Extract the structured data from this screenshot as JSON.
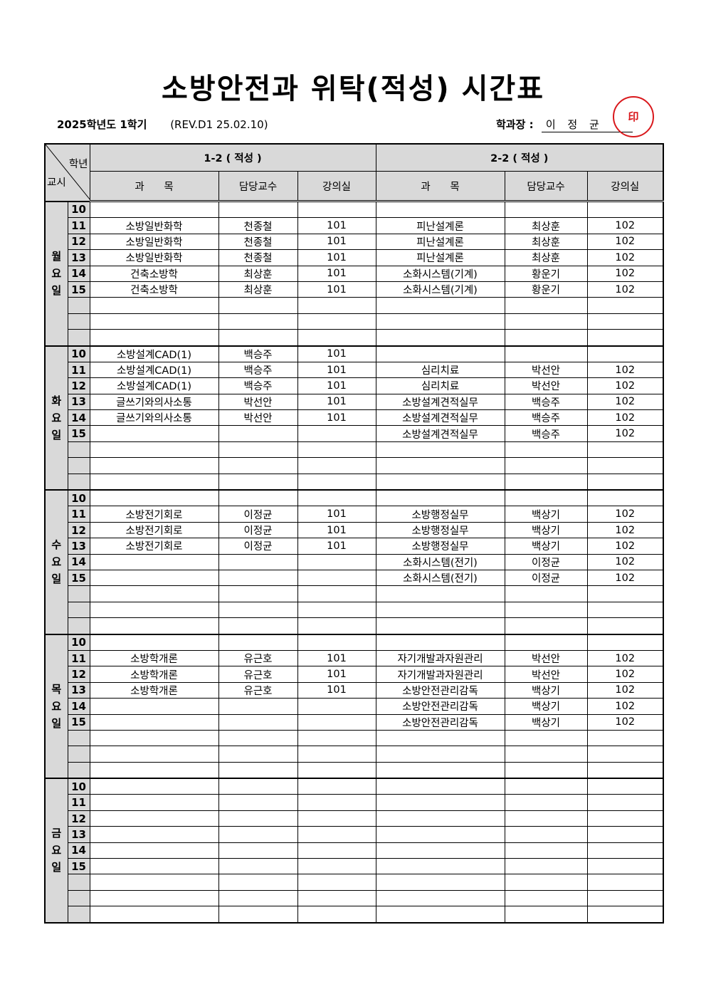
{
  "title": "소방안전과 위탁(적성) 시간표",
  "meta": {
    "term": "2025학년도  1학기",
    "revision": "(REV.D1  25.02.10)",
    "head_label": "학과장 :",
    "head_name": "이 정 균",
    "seal_mark": "(인)",
    "seal_text": "학과장"
  },
  "table": {
    "corner_top": "학년",
    "corner_bottom": "교시",
    "group1": "1-2 ( 적성 )",
    "group2": "2-2 ( 적성 )",
    "columns": [
      "과      목",
      "담당교수",
      "강의실",
      "과      목",
      "담당교수",
      "강의실"
    ],
    "days": [
      {
        "label": "월요일",
        "rows": [
          [
            "10",
            "",
            "",
            "",
            "",
            "",
            ""
          ],
          [
            "11",
            "소방일반화학",
            "천종철",
            "101",
            "피난설계론",
            "최상훈",
            "102"
          ],
          [
            "12",
            "소방일반화학",
            "천종철",
            "101",
            "피난설계론",
            "최상훈",
            "102"
          ],
          [
            "13",
            "소방일반화학",
            "천종철",
            "101",
            "피난설계론",
            "최상훈",
            "102"
          ],
          [
            "14",
            "건축소방학",
            "최상훈",
            "101",
            "소화시스템(기계)",
            "황운기",
            "102"
          ],
          [
            "15",
            "건축소방학",
            "최상훈",
            "101",
            "소화시스템(기계)",
            "황운기",
            "102"
          ],
          [
            "",
            "",
            "",
            "",
            "",
            "",
            ""
          ],
          [
            "",
            "",
            "",
            "",
            "",
            "",
            ""
          ],
          [
            "",
            "",
            "",
            "",
            "",
            "",
            ""
          ]
        ]
      },
      {
        "label": "화요일",
        "rows": [
          [
            "10",
            "소방설계CAD(1)",
            "백승주",
            "101",
            "",
            "",
            ""
          ],
          [
            "11",
            "소방설계CAD(1)",
            "백승주",
            "101",
            "심리치료",
            "박선안",
            "102"
          ],
          [
            "12",
            "소방설계CAD(1)",
            "백승주",
            "101",
            "심리치료",
            "박선안",
            "102"
          ],
          [
            "13",
            "글쓰기와의사소통",
            "박선안",
            "101",
            "소방설계견적실무",
            "백승주",
            "102"
          ],
          [
            "14",
            "글쓰기와의사소통",
            "박선안",
            "101",
            "소방설계견적실무",
            "백승주",
            "102"
          ],
          [
            "15",
            "",
            "",
            "",
            "소방설계견적실무",
            "백승주",
            "102"
          ],
          [
            "",
            "",
            "",
            "",
            "",
            "",
            ""
          ],
          [
            "",
            "",
            "",
            "",
            "",
            "",
            ""
          ],
          [
            "",
            "",
            "",
            "",
            "",
            "",
            ""
          ]
        ]
      },
      {
        "label": "수요일",
        "rows": [
          [
            "10",
            "",
            "",
            "",
            "",
            "",
            ""
          ],
          [
            "11",
            "소방전기회로",
            "이정균",
            "101",
            "소방행정실무",
            "백상기",
            "102"
          ],
          [
            "12",
            "소방전기회로",
            "이정균",
            "101",
            "소방행정실무",
            "백상기",
            "102"
          ],
          [
            "13",
            "소방전기회로",
            "이정균",
            "101",
            "소방행정실무",
            "백상기",
            "102"
          ],
          [
            "14",
            "",
            "",
            "",
            "소화시스템(전기)",
            "이정균",
            "102"
          ],
          [
            "15",
            "",
            "",
            "",
            "소화시스템(전기)",
            "이정균",
            "102"
          ],
          [
            "",
            "",
            "",
            "",
            "",
            "",
            ""
          ],
          [
            "",
            "",
            "",
            "",
            "",
            "",
            ""
          ],
          [
            "",
            "",
            "",
            "",
            "",
            "",
            ""
          ]
        ]
      },
      {
        "label": "목요일",
        "rows": [
          [
            "10",
            "",
            "",
            "",
            "",
            "",
            ""
          ],
          [
            "11",
            "소방학개론",
            "유근호",
            "101",
            "자기개발과자원관리",
            "박선안",
            "102"
          ],
          [
            "12",
            "소방학개론",
            "유근호",
            "101",
            "자기개발과자원관리",
            "박선안",
            "102"
          ],
          [
            "13",
            "소방학개론",
            "유근호",
            "101",
            "소방안전관리감독",
            "백상기",
            "102"
          ],
          [
            "14",
            "",
            "",
            "",
            "소방안전관리감독",
            "백상기",
            "102"
          ],
          [
            "15",
            "",
            "",
            "",
            "소방안전관리감독",
            "백상기",
            "102"
          ],
          [
            "",
            "",
            "",
            "",
            "",
            "",
            ""
          ],
          [
            "",
            "",
            "",
            "",
            "",
            "",
            ""
          ],
          [
            "",
            "",
            "",
            "",
            "",
            "",
            ""
          ]
        ]
      },
      {
        "label": "금요일",
        "rows": [
          [
            "10",
            "",
            "",
            "",
            "",
            "",
            ""
          ],
          [
            "11",
            "",
            "",
            "",
            "",
            "",
            ""
          ],
          [
            "12",
            "",
            "",
            "",
            "",
            "",
            ""
          ],
          [
            "13",
            "",
            "",
            "",
            "",
            "",
            ""
          ],
          [
            "14",
            "",
            "",
            "",
            "",
            "",
            ""
          ],
          [
            "15",
            "",
            "",
            "",
            "",
            "",
            ""
          ],
          [
            "",
            "",
            "",
            "",
            "",
            "",
            ""
          ],
          [
            "",
            "",
            "",
            "",
            "",
            "",
            ""
          ],
          [
            "",
            "",
            "",
            "",
            "",
            "",
            ""
          ]
        ]
      }
    ]
  }
}
